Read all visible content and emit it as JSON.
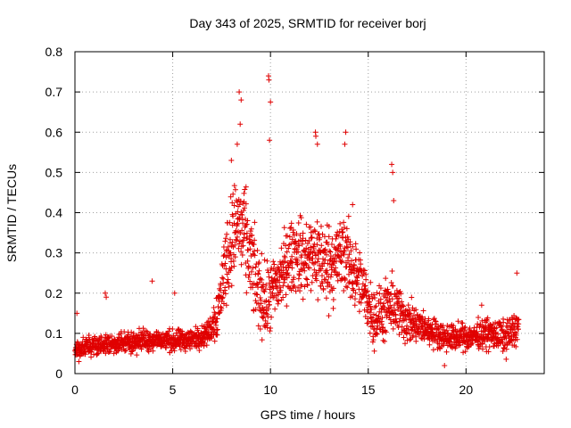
{
  "chart_data": {
    "type": "scatter",
    "title": "Day 343 of 2025, SRMTID for receiver borj",
    "xlabel": "GPS time / hours",
    "ylabel": "SRMTID / TECUs",
    "xlim": [
      0,
      24
    ],
    "ylim": [
      0,
      0.8
    ],
    "xticks": [
      0,
      5,
      10,
      15,
      20
    ],
    "yticks": [
      0,
      0.1,
      0.2,
      0.3,
      0.4,
      0.5,
      0.6,
      0.7,
      0.8
    ],
    "grid": true,
    "marker": "+",
    "color": "#e00000",
    "series": [
      {
        "name": "SRMTID",
        "trend": [
          [
            0.0,
            0.06
          ],
          [
            1.0,
            0.07
          ],
          [
            2.0,
            0.075
          ],
          [
            3.0,
            0.08
          ],
          [
            4.0,
            0.085
          ],
          [
            5.0,
            0.08
          ],
          [
            6.0,
            0.085
          ],
          [
            6.8,
            0.1
          ],
          [
            7.3,
            0.15
          ],
          [
            7.8,
            0.3
          ],
          [
            8.3,
            0.38
          ],
          [
            8.8,
            0.32
          ],
          [
            9.3,
            0.22
          ],
          [
            9.8,
            0.17
          ],
          [
            10.3,
            0.22
          ],
          [
            10.8,
            0.27
          ],
          [
            11.3,
            0.3
          ],
          [
            11.8,
            0.28
          ],
          [
            12.3,
            0.3
          ],
          [
            12.8,
            0.27
          ],
          [
            13.3,
            0.28
          ],
          [
            13.8,
            0.3
          ],
          [
            14.3,
            0.25
          ],
          [
            14.8,
            0.2
          ],
          [
            15.3,
            0.14
          ],
          [
            15.8,
            0.15
          ],
          [
            16.3,
            0.17
          ],
          [
            16.8,
            0.14
          ],
          [
            17.3,
            0.12
          ],
          [
            18.0,
            0.11
          ],
          [
            19.0,
            0.09
          ],
          [
            20.0,
            0.09
          ],
          [
            21.0,
            0.1
          ],
          [
            22.0,
            0.09
          ],
          [
            22.7,
            0.12
          ]
        ],
        "scatter_spread": [
          [
            0.0,
            0.025
          ],
          [
            3.0,
            0.03
          ],
          [
            6.8,
            0.03
          ],
          [
            7.8,
            0.12
          ],
          [
            8.5,
            0.14
          ],
          [
            9.8,
            0.1
          ],
          [
            11.0,
            0.1
          ],
          [
            12.5,
            0.12
          ],
          [
            13.8,
            0.11
          ],
          [
            15.0,
            0.08
          ],
          [
            16.3,
            0.08
          ],
          [
            18.0,
            0.04
          ],
          [
            20.0,
            0.035
          ],
          [
            22.7,
            0.05
          ]
        ],
        "points": [
          [
            1.55,
            0.2
          ],
          [
            1.6,
            0.19
          ],
          [
            3.95,
            0.23
          ],
          [
            5.1,
            0.2
          ],
          [
            8.4,
            0.7
          ],
          [
            8.5,
            0.68
          ],
          [
            8.45,
            0.62
          ],
          [
            8.3,
            0.57
          ],
          [
            8.0,
            0.53
          ],
          [
            9.9,
            0.74
          ],
          [
            9.92,
            0.73
          ],
          [
            10.0,
            0.675
          ],
          [
            9.95,
            0.58
          ],
          [
            12.3,
            0.6
          ],
          [
            12.32,
            0.59
          ],
          [
            12.4,
            0.57
          ],
          [
            13.85,
            0.6
          ],
          [
            13.8,
            0.57
          ],
          [
            16.2,
            0.52
          ],
          [
            16.25,
            0.5
          ],
          [
            16.3,
            0.43
          ],
          [
            7.1,
            0.13
          ],
          [
            20.8,
            0.17
          ],
          [
            22.6,
            0.25
          ],
          [
            0.1,
            0.15
          ],
          [
            0.2,
            0.03
          ],
          [
            18.9,
            0.02
          ],
          [
            14.2,
            0.42
          ]
        ]
      }
    ]
  }
}
